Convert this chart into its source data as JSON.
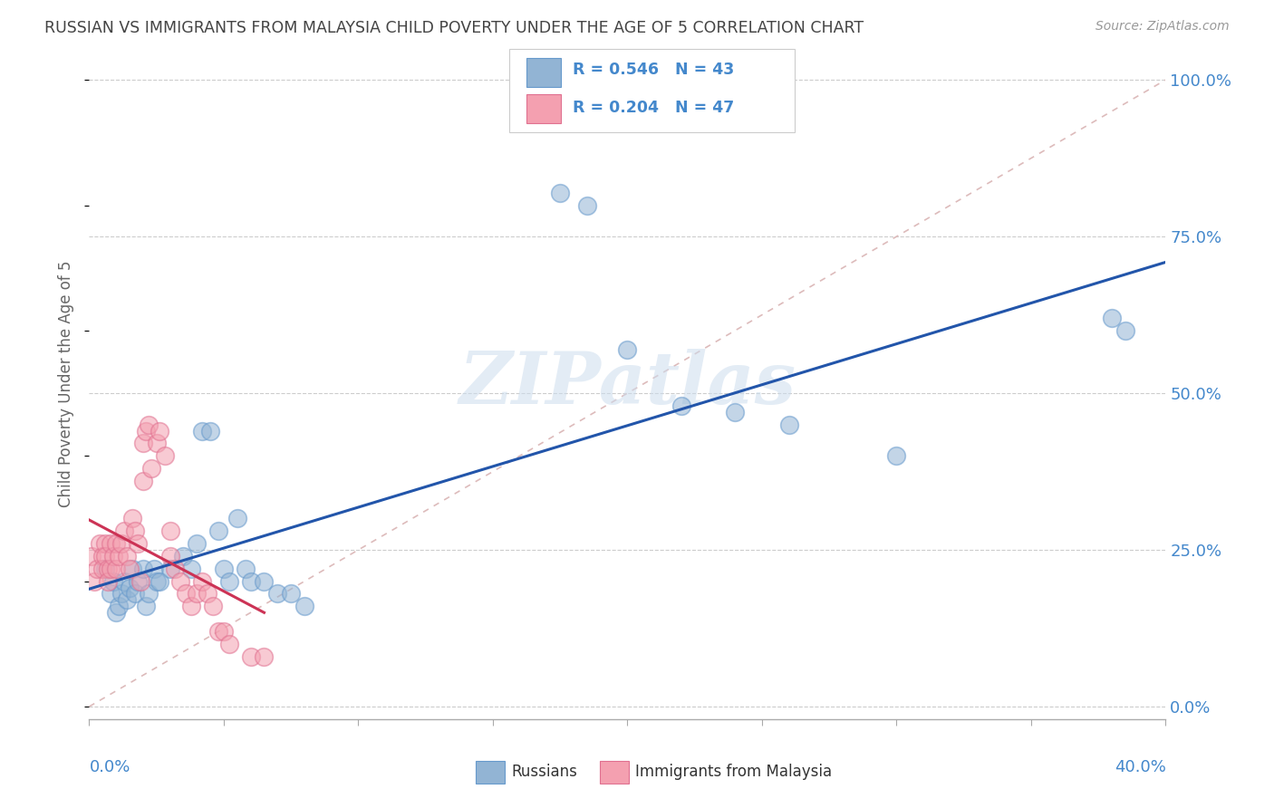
{
  "title": "RUSSIAN VS IMMIGRANTS FROM MALAYSIA CHILD POVERTY UNDER THE AGE OF 5 CORRELATION CHART",
  "source": "Source: ZipAtlas.com",
  "ylabel": "Child Poverty Under the Age of 5",
  "ylabel_right_ticks": [
    "0.0%",
    "25.0%",
    "50.0%",
    "75.0%",
    "100.0%"
  ],
  "ylabel_right_vals": [
    0.0,
    0.25,
    0.5,
    0.75,
    1.0
  ],
  "xlim": [
    0.0,
    0.4
  ],
  "ylim": [
    -0.02,
    1.05
  ],
  "blue_color": "#92B4D4",
  "pink_color": "#F4A0B0",
  "blue_edge_color": "#6699CC",
  "pink_edge_color": "#E07090",
  "blue_line_color": "#2255AA",
  "pink_line_color": "#CC3355",
  "diag_color": "#DDBBBB",
  "grid_color": "#CCCCCC",
  "title_color": "#444444",
  "axis_label_color": "#4488CC",
  "russians_x": [
    0.006,
    0.008,
    0.009,
    0.01,
    0.011,
    0.012,
    0.013,
    0.014,
    0.015,
    0.016,
    0.017,
    0.018,
    0.02,
    0.021,
    0.022,
    0.024,
    0.025,
    0.026,
    0.03,
    0.035,
    0.038,
    0.04,
    0.042,
    0.045,
    0.048,
    0.05,
    0.052,
    0.055,
    0.058,
    0.06,
    0.065,
    0.07,
    0.075,
    0.08,
    0.175,
    0.185,
    0.2,
    0.22,
    0.24,
    0.26,
    0.3,
    0.38,
    0.385
  ],
  "russians_y": [
    0.22,
    0.18,
    0.2,
    0.15,
    0.16,
    0.18,
    0.2,
    0.17,
    0.19,
    0.22,
    0.18,
    0.2,
    0.22,
    0.16,
    0.18,
    0.22,
    0.2,
    0.2,
    0.22,
    0.24,
    0.22,
    0.26,
    0.44,
    0.44,
    0.28,
    0.22,
    0.2,
    0.3,
    0.22,
    0.2,
    0.2,
    0.18,
    0.18,
    0.16,
    0.82,
    0.8,
    0.57,
    0.48,
    0.47,
    0.45,
    0.4,
    0.62,
    0.6
  ],
  "malaysia_x": [
    0.001,
    0.002,
    0.003,
    0.004,
    0.005,
    0.005,
    0.006,
    0.006,
    0.007,
    0.007,
    0.008,
    0.008,
    0.009,
    0.01,
    0.01,
    0.011,
    0.012,
    0.013,
    0.014,
    0.015,
    0.016,
    0.017,
    0.018,
    0.019,
    0.02,
    0.02,
    0.021,
    0.022,
    0.023,
    0.025,
    0.026,
    0.028,
    0.03,
    0.03,
    0.032,
    0.034,
    0.036,
    0.038,
    0.04,
    0.042,
    0.044,
    0.046,
    0.048,
    0.05,
    0.052,
    0.06,
    0.065
  ],
  "malaysia_y": [
    0.24,
    0.2,
    0.22,
    0.26,
    0.24,
    0.22,
    0.26,
    0.24,
    0.22,
    0.2,
    0.26,
    0.22,
    0.24,
    0.26,
    0.22,
    0.24,
    0.26,
    0.28,
    0.24,
    0.22,
    0.3,
    0.28,
    0.26,
    0.2,
    0.36,
    0.42,
    0.44,
    0.45,
    0.38,
    0.42,
    0.44,
    0.4,
    0.24,
    0.28,
    0.22,
    0.2,
    0.18,
    0.16,
    0.18,
    0.2,
    0.18,
    0.16,
    0.12,
    0.12,
    0.1,
    0.08,
    0.08
  ]
}
